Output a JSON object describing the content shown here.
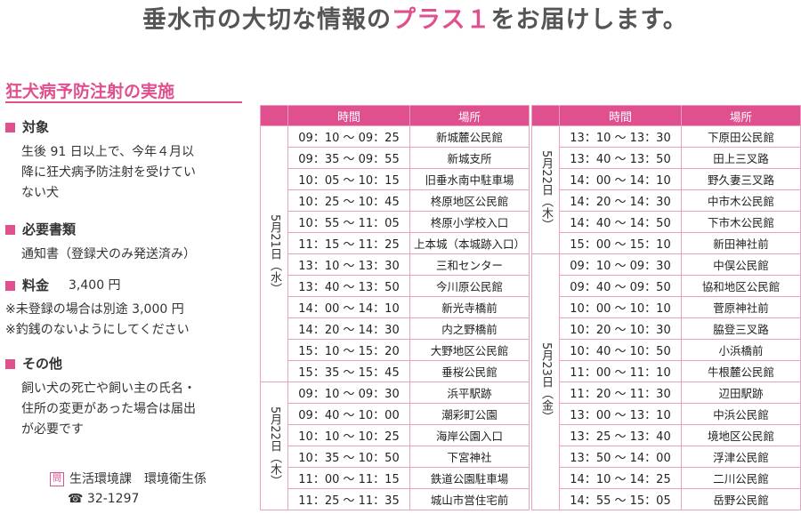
{
  "headline": {
    "prefix": "垂水市の大切な情報の",
    "accent": "プラス１",
    "suffix": "をお届けします。"
  },
  "section_title": "狂犬病予防注射の実施",
  "left": {
    "target_label": "対象",
    "target_lines": [
      "生後 91 日以上で、今年４月以",
      "降に狂犬病予防注射を受けてい",
      "ない犬"
    ],
    "docs_label": "必要書類",
    "docs_text": "通知書（登録犬のみ発送済み）",
    "fee_label": "料金",
    "fee_value": "3,400 円",
    "notes": [
      "※未登録の場合は別途 3,000 円",
      "※釣銭のないようにしてください"
    ],
    "other_label": "その他",
    "other_lines": [
      "飼い犬の死亡や飼い主の氏名・",
      "住所の変更があった場合は届出",
      "が必要です"
    ]
  },
  "contact": {
    "tag": "問",
    "dept": "生活環境課　環境衛生係",
    "phone_icon": "☎",
    "phone": "32-1297"
  },
  "table_headers": {
    "time": "時間",
    "place": "場所"
  },
  "left_table": [
    {
      "date": "5月21日（水）",
      "rows": [
        [
          "09：10 〜 09：25",
          "新城麓公民館"
        ],
        [
          "09：35 〜 09：55",
          "新城支所"
        ],
        [
          "10：05 〜 10：15",
          "旧垂水南中駐車場"
        ],
        [
          "10：25 〜 10：45",
          "柊原地区公民館"
        ],
        [
          "10：55 〜 11：05",
          "柊原小学校入口"
        ],
        [
          "11：15 〜 11：25",
          "上本城（本城跡入口）"
        ],
        [
          "13：10 〜 13：30",
          "三和センター"
        ],
        [
          "13：40 〜 13：50",
          "今川原公民館"
        ],
        [
          "14：00 〜 14：10",
          "新光寺橋前"
        ],
        [
          "14：20 〜 14：30",
          "内之野橋前"
        ],
        [
          "15：10 〜 15：20",
          "大野地区公民館"
        ],
        [
          "15：35 〜 15：45",
          "垂桜公民館"
        ]
      ]
    },
    {
      "date": "5月22日（木）",
      "rows": [
        [
          "09：10 〜 09：30",
          "浜平駅跡"
        ],
        [
          "09：40 〜 10：00",
          "潮彩町公園"
        ],
        [
          "10：10 〜 10：25",
          "海岸公園入口"
        ],
        [
          "10：35 〜 10：50",
          "下宮神社"
        ],
        [
          "11：00 〜 11：15",
          "鉄道公園駐車場"
        ],
        [
          "11：25 〜 11：35",
          "城山市営住宅前"
        ]
      ]
    }
  ],
  "right_table": [
    {
      "date": "5月22日（木）",
      "rows": [
        [
          "13：10 〜 13：30",
          "下原田公民館"
        ],
        [
          "13：40 〜 13：50",
          "田上三叉路"
        ],
        [
          "14：00 〜 14：10",
          "野久妻三叉路"
        ],
        [
          "14：20 〜 14：30",
          "中市木公民館"
        ],
        [
          "14：40 〜 14：50",
          "下市木公民館"
        ],
        [
          "15：00 〜 15：10",
          "新田神社前"
        ]
      ]
    },
    {
      "date": "5月23日（金）",
      "rows": [
        [
          "09：10 〜 09：30",
          "中俣公民館"
        ],
        [
          "09：40 〜 09：50",
          "協和地区公民館"
        ],
        [
          "10：00 〜 10：10",
          "菅原神社前"
        ],
        [
          "10：20 〜 10：30",
          "脇登三叉路"
        ],
        [
          "10：40 〜 10：50",
          "小浜橋前"
        ],
        [
          "11：00 〜 11：10",
          "牛根麓公民館"
        ],
        [
          "11：20 〜 11：30",
          "辺田駅跡"
        ],
        [
          "13：00 〜 13：10",
          "中浜公民館"
        ],
        [
          "13：25 〜 13：40",
          "境地区公民館"
        ],
        [
          "13：50 〜 14：00",
          "浮津公民館"
        ],
        [
          "14：10 〜 14：25",
          "二川公民館"
        ],
        [
          "14：55 〜 15：05",
          "岳野公民館"
        ]
      ]
    }
  ]
}
